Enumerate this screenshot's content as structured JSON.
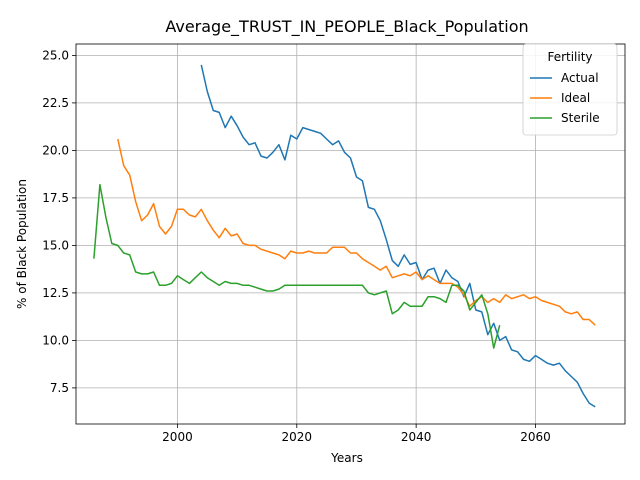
{
  "chart_data": {
    "type": "line",
    "title": "Average_TRUST_IN_PEOPLE_Black_Population",
    "xlabel": "Years",
    "ylabel": "% of Black Population",
    "xlim": [
      1983,
      2075
    ],
    "ylim": [
      5.6,
      25.6
    ],
    "xticks": [
      2000,
      2020,
      2040,
      2060
    ],
    "yticks": [
      7.5,
      10.0,
      12.5,
      15.0,
      17.5,
      20.0,
      22.5,
      25.0
    ],
    "ytick_labels": [
      "7.5",
      "10.0",
      "12.5",
      "15.0",
      "17.5",
      "20.0",
      "22.5",
      "25.0"
    ],
    "grid": true,
    "legend": {
      "title": "Fertility",
      "placement": "top-right"
    },
    "series": [
      {
        "name": "Actual",
        "color": "#1f77b4",
        "x": [
          2004,
          2005,
          2006,
          2007,
          2008,
          2009,
          2010,
          2011,
          2012,
          2013,
          2014,
          2015,
          2016,
          2017,
          2018,
          2019,
          2020,
          2021,
          2022,
          2023,
          2024,
          2025,
          2026,
          2027,
          2028,
          2029,
          2030,
          2031,
          2032,
          2033,
          2034,
          2035,
          2036,
          2037,
          2038,
          2039,
          2040,
          2041,
          2042,
          2043,
          2044,
          2045,
          2046,
          2047,
          2048,
          2049,
          2050,
          2051,
          2052,
          2053,
          2054,
          2055,
          2056,
          2057,
          2058,
          2059,
          2060,
          2061,
          2062,
          2063,
          2064,
          2065,
          2066,
          2067,
          2068,
          2069,
          2070
        ],
        "values": [
          24.5,
          23.1,
          22.1,
          22.0,
          21.2,
          21.8,
          21.3,
          20.7,
          20.3,
          20.4,
          19.7,
          19.6,
          19.9,
          20.3,
          19.5,
          20.8,
          20.6,
          21.2,
          21.1,
          21.0,
          20.9,
          20.6,
          20.3,
          20.5,
          19.9,
          19.6,
          18.6,
          18.4,
          17.0,
          16.9,
          16.3,
          15.3,
          14.2,
          13.9,
          14.5,
          14.0,
          14.1,
          13.2,
          13.7,
          13.8,
          13.0,
          13.7,
          13.3,
          13.1,
          12.3,
          13.0,
          11.6,
          11.5,
          10.3,
          10.9,
          10.0,
          10.2,
          9.5,
          9.4,
          9.0,
          8.9,
          9.2,
          9.0,
          8.8,
          8.7,
          8.8,
          8.4,
          8.1,
          7.8,
          7.2,
          6.7,
          6.5
        ]
      },
      {
        "name": "Ideal",
        "color": "#ff7f0e",
        "x": [
          1990,
          1991,
          1992,
          1993,
          1994,
          1995,
          1996,
          1997,
          1998,
          1999,
          2000,
          2001,
          2002,
          2003,
          2004,
          2005,
          2006,
          2007,
          2008,
          2009,
          2010,
          2011,
          2012,
          2013,
          2014,
          2015,
          2016,
          2017,
          2018,
          2019,
          2020,
          2021,
          2022,
          2023,
          2024,
          2025,
          2026,
          2027,
          2028,
          2029,
          2030,
          2031,
          2032,
          2033,
          2034,
          2035,
          2036,
          2037,
          2038,
          2039,
          2040,
          2041,
          2042,
          2043,
          2044,
          2045,
          2046,
          2047,
          2048,
          2049,
          2050,
          2051,
          2052,
          2053,
          2054,
          2055,
          2056,
          2057,
          2058,
          2059,
          2060,
          2061,
          2062,
          2063,
          2064,
          2065,
          2066,
          2067,
          2068,
          2069,
          2070
        ],
        "values": [
          20.6,
          19.2,
          18.7,
          17.3,
          16.3,
          16.6,
          17.2,
          16.0,
          15.6,
          16.0,
          16.9,
          16.9,
          16.6,
          16.5,
          16.9,
          16.3,
          15.8,
          15.4,
          15.9,
          15.5,
          15.6,
          15.1,
          15.0,
          15.0,
          14.8,
          14.7,
          14.6,
          14.5,
          14.3,
          14.7,
          14.6,
          14.6,
          14.7,
          14.6,
          14.6,
          14.6,
          14.9,
          14.9,
          14.9,
          14.6,
          14.6,
          14.3,
          14.1,
          13.9,
          13.7,
          13.9,
          13.3,
          13.4,
          13.5,
          13.4,
          13.6,
          13.2,
          13.4,
          13.2,
          13.0,
          13.0,
          13.0,
          12.8,
          12.4,
          11.8,
          12.1,
          12.3,
          12.0,
          12.2,
          12.0,
          12.4,
          12.2,
          12.3,
          12.4,
          12.2,
          12.3,
          12.1,
          12.0,
          11.9,
          11.8,
          11.5,
          11.4,
          11.5,
          11.1,
          11.1,
          10.8
        ]
      },
      {
        "name": "Sterile",
        "color": "#2ca02c",
        "x": [
          1986,
          1987,
          1988,
          1989,
          1990,
          1991,
          1992,
          1993,
          1994,
          1995,
          1996,
          1997,
          1998,
          1999,
          2000,
          2001,
          2002,
          2003,
          2004,
          2005,
          2006,
          2007,
          2008,
          2009,
          2010,
          2011,
          2012,
          2013,
          2014,
          2015,
          2016,
          2017,
          2018,
          2019,
          2020,
          2021,
          2022,
          2023,
          2024,
          2025,
          2026,
          2027,
          2028,
          2029,
          2030,
          2031,
          2032,
          2033,
          2034,
          2035,
          2036,
          2037,
          2038,
          2039,
          2040,
          2041,
          2042,
          2043,
          2044,
          2045,
          2046,
          2047,
          2048,
          2049,
          2050,
          2051,
          2052,
          2053,
          2054
        ],
        "values": [
          14.3,
          18.2,
          16.5,
          15.1,
          15.0,
          14.6,
          14.5,
          13.6,
          13.5,
          13.5,
          13.6,
          12.9,
          12.9,
          13.0,
          13.4,
          13.2,
          13.0,
          13.3,
          13.6,
          13.3,
          13.1,
          12.9,
          13.1,
          13.0,
          13.0,
          12.9,
          12.9,
          12.8,
          12.7,
          12.6,
          12.6,
          12.7,
          12.9,
          12.9,
          12.9,
          12.9,
          12.9,
          12.9,
          12.9,
          12.9,
          12.9,
          12.9,
          12.9,
          12.9,
          12.9,
          12.9,
          12.5,
          12.4,
          12.5,
          12.6,
          11.4,
          11.6,
          12.0,
          11.8,
          11.8,
          11.8,
          12.3,
          12.3,
          12.2,
          12.0,
          12.9,
          12.9,
          12.6,
          11.6,
          12.0,
          12.4,
          11.4,
          9.6,
          10.8
        ]
      }
    ]
  }
}
